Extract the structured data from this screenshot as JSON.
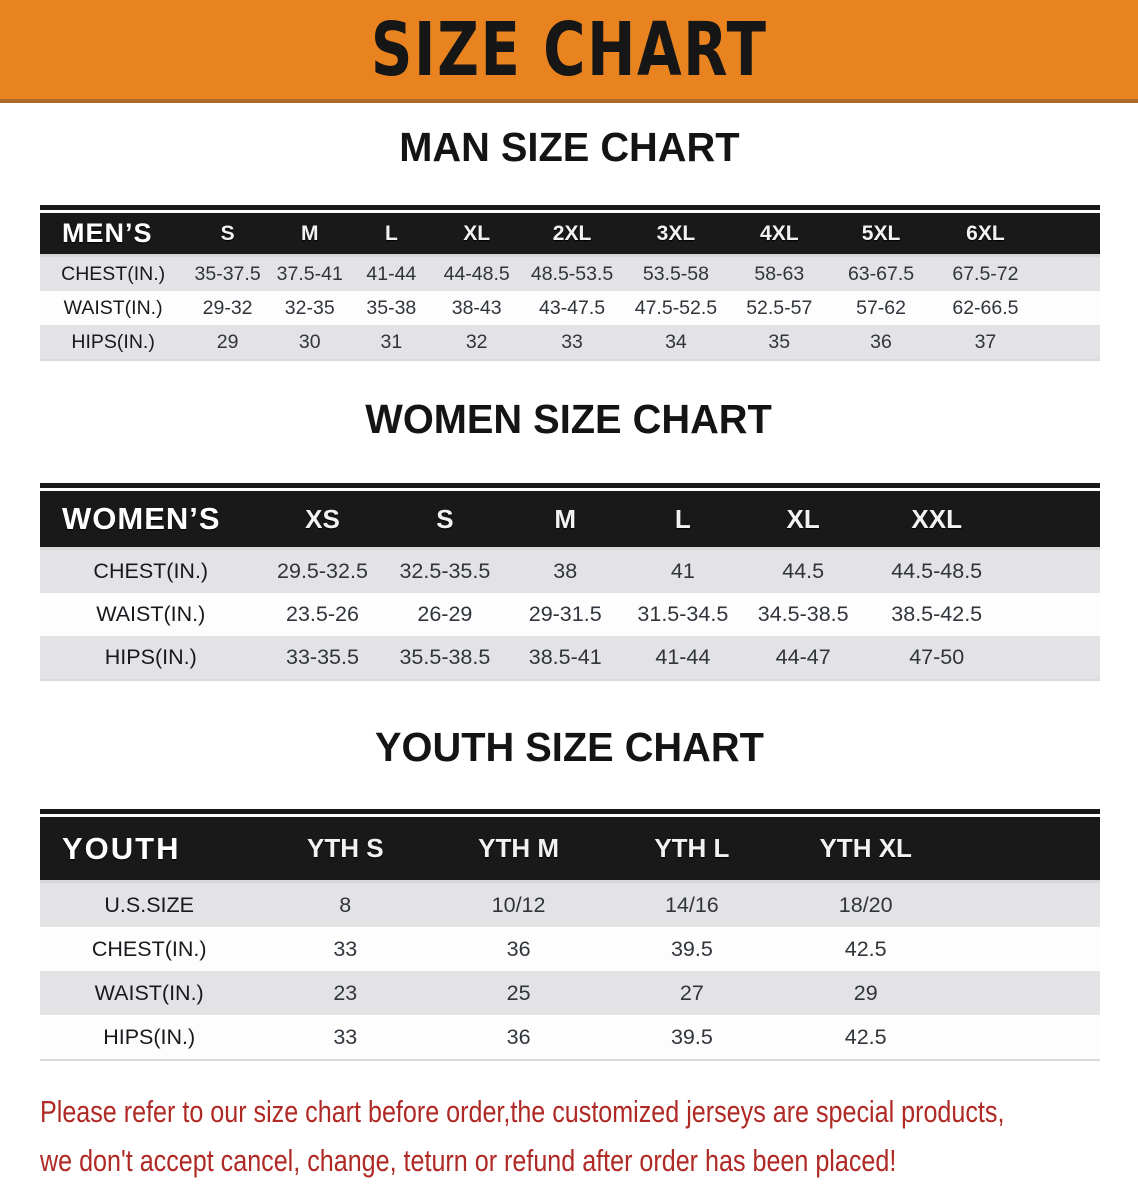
{
  "banner": {
    "title": "SIZE CHART",
    "bg_color": "#E8831F",
    "text_color": "#161616"
  },
  "sections": {
    "men": {
      "title": "MAN SIZE CHART",
      "columns": [
        "MEN’S",
        "S",
        "M",
        "L",
        "XL",
        "2XL",
        "3XL",
        "4XL",
        "5XL",
        "6XL"
      ],
      "rows": [
        {
          "label": "CHEST(IN.)",
          "values": [
            "35-37.5",
            "37.5-41",
            "41-44",
            "44-48.5",
            "48.5-53.5",
            "53.5-58",
            "58-63",
            "63-67.5",
            "67.5-72"
          ]
        },
        {
          "label": "WAIST(IN.)",
          "values": [
            "29-32",
            "32-35",
            "35-38",
            "38-43",
            "43-47.5",
            "47.5-52.5",
            "52.5-57",
            "57-62",
            "62-66.5"
          ]
        },
        {
          "label": "HIPS(IN.)",
          "values": [
            "29",
            "30",
            "31",
            "32",
            "33",
            "34",
            "35",
            "36",
            "37"
          ]
        }
      ]
    },
    "women": {
      "title": "WOMEN SIZE CHART",
      "columns": [
        "WOMEN’S",
        "XS",
        "S",
        "M",
        "L",
        "XL",
        "XXL"
      ],
      "rows": [
        {
          "label": "CHEST(IN.)",
          "values": [
            "29.5-32.5",
            "32.5-35.5",
            "38",
            "41",
            "44.5",
            "44.5-48.5"
          ]
        },
        {
          "label": "WAIST(IN.)",
          "values": [
            "23.5-26",
            "26-29",
            "29-31.5",
            "31.5-34.5",
            "34.5-38.5",
            "38.5-42.5"
          ]
        },
        {
          "label": "HIPS(IN.)",
          "values": [
            "33-35.5",
            "35.5-38.5",
            "38.5-41",
            "41-44",
            "44-47",
            "47-50"
          ]
        }
      ]
    },
    "youth": {
      "title": "YOUTH SIZE CHART",
      "columns": [
        "YOUTH",
        "YTH S",
        "YTH M",
        "YTH L",
        "YTH XL"
      ],
      "rows": [
        {
          "label": "U.S.SIZE",
          "values": [
            "8",
            "10/12",
            "14/16",
            "18/20"
          ]
        },
        {
          "label": "CHEST(IN.)",
          "values": [
            "33",
            "36",
            "39.5",
            "42.5"
          ]
        },
        {
          "label": "WAIST(IN.)",
          "values": [
            "23",
            "25",
            "27",
            "29"
          ]
        },
        {
          "label": "HIPS(IN.)",
          "values": [
            "33",
            "36",
            "39.5",
            "42.5"
          ]
        }
      ]
    }
  },
  "footer": {
    "line1": "Please refer to our size chart before order,the customized jerseys are special products,",
    "line2": "we don't accept cancel, change, teturn or refund after order has been placed!",
    "text_color": "#B02A25"
  },
  "colors": {
    "banner_orange": "#E8831F",
    "banner_edge": "#AA6B29",
    "header_black": "#191919",
    "row_shade_gray": "#E3E3E6",
    "row_plain_white": "#FDFDFE",
    "value_text": "#30353B",
    "footer_red": "#B02A25"
  }
}
